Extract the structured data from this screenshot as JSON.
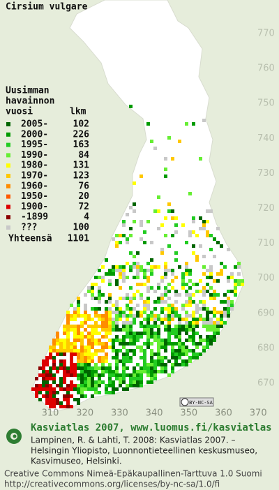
{
  "title": "Cirsium vulgare",
  "legend": {
    "header": [
      "Uusimman",
      "havainnon"
    ],
    "year_label": "vuosi",
    "count_label": "lkm",
    "items": [
      {
        "label": "2005-",
        "count": 102,
        "color": "#006400"
      },
      {
        "label": "2000-",
        "count": 226,
        "color": "#009a00"
      },
      {
        "label": "1995-",
        "count": 163,
        "color": "#22cc22"
      },
      {
        "label": "1990-",
        "count": 84,
        "color": "#66ee33"
      },
      {
        "label": "1980-",
        "count": 131,
        "color": "#ffff00"
      },
      {
        "label": "1970-",
        "count": 123,
        "color": "#ffc800"
      },
      {
        "label": "1960-",
        "count": 76,
        "color": "#ff8c00"
      },
      {
        "label": "1950-",
        "count": 20,
        "color": "#ff5a00"
      },
      {
        "label": "1900-",
        "count": 72,
        "color": "#dd0000"
      },
      {
        "label": "-1899",
        "count": 4,
        "color": "#8b0000"
      },
      {
        "label": "???",
        "count": 100,
        "color": "#c8c8c8"
      }
    ],
    "total_label": "Yhteensä",
    "total": 1101
  },
  "map": {
    "yticks": [
      770,
      760,
      750,
      740,
      730,
      720,
      710,
      700,
      690,
      680,
      670
    ],
    "xticks": [
      310,
      320,
      330,
      340,
      350,
      360,
      370
    ]
  },
  "license_badge": "BY-NC-SA",
  "footer": {
    "heading": "Kasviatlas 2007, www.luomus.fi/kasviatlas",
    "citation": [
      "Lampinen, R. & Lahti, T. 2008: Kasviatlas 2007. –",
      "Helsingin Yliopisto, Luonnontieteellinen keskusmuseo,",
      "Kasvimuseo, Helsinki."
    ],
    "license": [
      "Creative Commons Nimeä-Epäkaupallinen-Tarttuva 1.0 Suomi",
      "http://creativecommons.org/licenses/by-nc-sa/1.0/fi"
    ]
  }
}
